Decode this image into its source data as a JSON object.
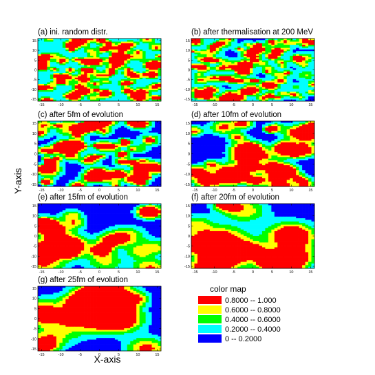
{
  "chart_data": {
    "type": "heatmap",
    "x_label": "X-axis",
    "y_label": "Y-axis",
    "x_ticks": [
      -15,
      -10,
      -5,
      0,
      5,
      10,
      15
    ],
    "y_ticks": [
      -15,
      -10,
      -5,
      0,
      5,
      10,
      15
    ],
    "xlim": [
      -16,
      16
    ],
    "ylim": [
      -16,
      16
    ],
    "panels": [
      {
        "title": "(a) ini. random distr.",
        "cells": 40,
        "seed": 11,
        "blobs": 120,
        "blobR": 0.9,
        "base": 0.42,
        "amp": 0.75
      },
      {
        "title": "(b) after thermalisation at 200 MeV",
        "cells": 40,
        "seed": 23,
        "blobs": 110,
        "blobR": 1.0,
        "base": 0.36,
        "amp": 0.75
      },
      {
        "title": "(c) after 5fm of evolution",
        "cells": 40,
        "seed": 37,
        "blobs": 80,
        "blobR": 1.2,
        "base": 0.28,
        "amp": 0.8
      },
      {
        "title": "(d) after 10fm of evolution",
        "cells": 40,
        "seed": 51,
        "blobs": 40,
        "blobR": 1.8,
        "base": 0.16,
        "amp": 0.9
      },
      {
        "title": "(e) after 15fm of evolution",
        "cells": 40,
        "seed": 67,
        "blobs": 20,
        "blobR": 2.8,
        "base": 0.06,
        "amp": 1.0
      },
      {
        "title": "(f) after 20fm of evolution",
        "cells": 40,
        "seed": 79,
        "blobs": 16,
        "blobR": 3.2,
        "base": 0.06,
        "amp": 1.0
      },
      {
        "title": "(g) after 25fm of evolution",
        "cells": 40,
        "seed": 91,
        "blobs": 14,
        "blobR": 3.6,
        "base": 0.05,
        "amp": 1.05
      }
    ],
    "color_map": {
      "title": "color map",
      "levels": [
        {
          "label": "0.8000  --  1.000",
          "color": "#ff0000",
          "min": 0.8,
          "max": 1.0
        },
        {
          "label": "0.6000  --  0.8000",
          "color": "#ffff00",
          "min": 0.6,
          "max": 0.8
        },
        {
          "label": "0.4000  --  0.6000",
          "color": "#00ff00",
          "min": 0.4,
          "max": 0.6
        },
        {
          "label": "0.2000  --  0.4000",
          "color": "#00ffff",
          "min": 0.2,
          "max": 0.4
        },
        {
          "label": "0  --  0.2000",
          "color": "#0000ff",
          "min": 0.0,
          "max": 0.2
        }
      ]
    }
  }
}
